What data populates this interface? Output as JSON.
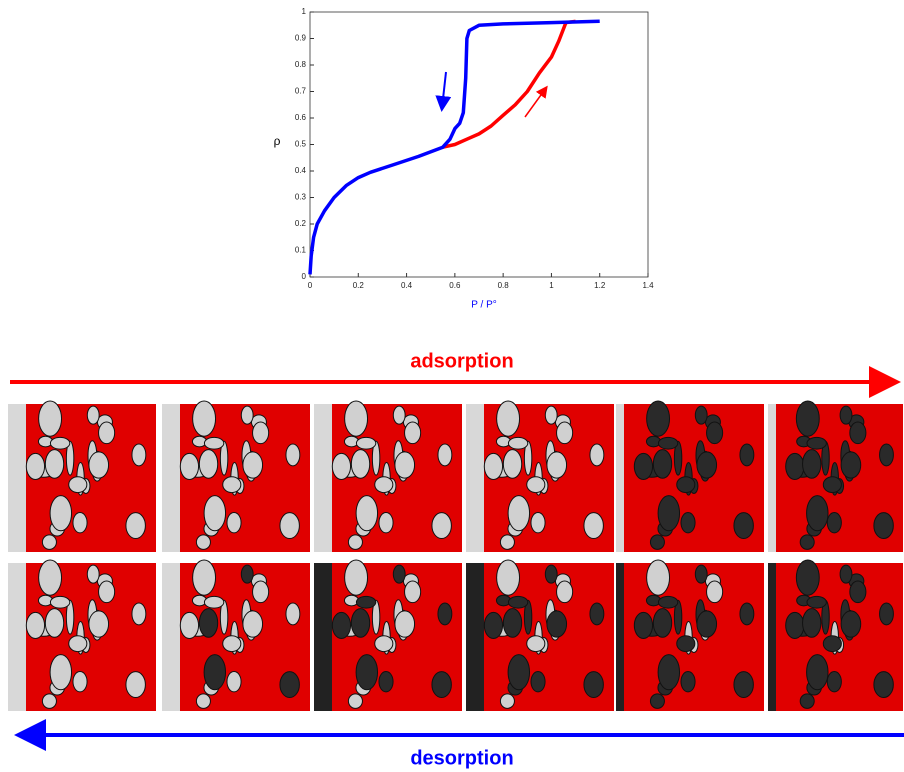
{
  "chart_data": {
    "type": "line",
    "y_label": "ρ",
    "x_label": "P / P°",
    "xlim": [
      0,
      1.4
    ],
    "xticks": [
      0,
      0.2,
      0.4,
      0.6,
      0.8,
      1,
      1.2,
      1.4
    ],
    "ylim": [
      0,
      1
    ],
    "yticks": [
      0,
      0.1,
      0.2,
      0.3,
      0.4,
      0.5,
      0.6,
      0.7,
      0.8,
      0.9,
      1
    ],
    "series": [
      {
        "name": "adsorption",
        "color": "#ff0000",
        "x": [
          0.55,
          0.6,
          0.65,
          0.7,
          0.75,
          0.8,
          0.85,
          0.9,
          0.95,
          1.0,
          1.03,
          1.06,
          1.1
        ],
        "values": [
          0.49,
          0.5,
          0.52,
          0.54,
          0.57,
          0.61,
          0.65,
          0.7,
          0.77,
          0.83,
          0.89,
          0.96,
          0.965
        ]
      },
      {
        "name": "desorption",
        "color": "#0000ff",
        "x": [
          1.2,
          1.0,
          0.8,
          0.7,
          0.66,
          0.65,
          0.645,
          0.635,
          0.62,
          0.6,
          0.58,
          0.55,
          0.45,
          0.35,
          0.25,
          0.2,
          0.15,
          0.1,
          0.06,
          0.03,
          0.015,
          0.005,
          0
        ],
        "values": [
          0.965,
          0.96,
          0.955,
          0.95,
          0.93,
          0.9,
          0.75,
          0.62,
          0.58,
          0.56,
          0.52,
          0.49,
          0.455,
          0.425,
          0.395,
          0.375,
          0.345,
          0.3,
          0.25,
          0.2,
          0.15,
          0.08,
          0.01
        ]
      }
    ]
  }
}
